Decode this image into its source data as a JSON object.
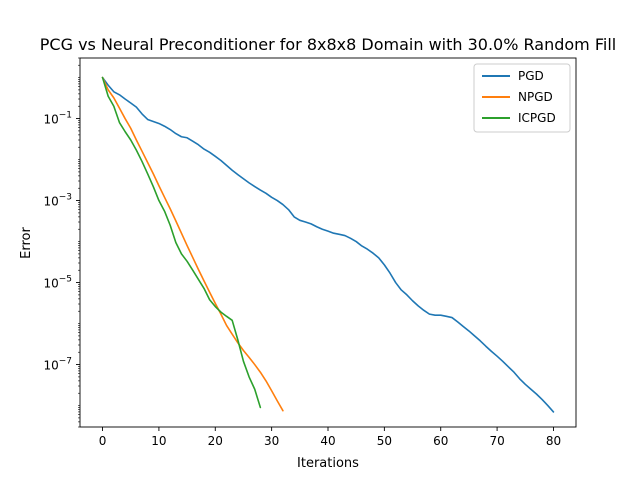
{
  "chart_data": {
    "type": "line",
    "title": "PCG vs Neural Preconditioner for 8x8x8 Domain with 30.0% Random Fill",
    "xlabel": "Iterations",
    "ylabel": "Error",
    "yscale": "log",
    "xlim": [
      -4,
      84
    ],
    "ylim": [
      3e-09,
      3.0
    ],
    "xticks": [
      0,
      10,
      20,
      30,
      40,
      50,
      60,
      70,
      80
    ],
    "xtick_labels": [
      "0",
      "10",
      "20",
      "30",
      "40",
      "50",
      "60",
      "70",
      "80"
    ],
    "yticks": [
      1e-07,
      1e-05,
      0.001,
      0.1
    ],
    "ytick_labels": [
      {
        "base": "10",
        "exp": "−7"
      },
      {
        "base": "10",
        "exp": "−5"
      },
      {
        "base": "10",
        "exp": "−3"
      },
      {
        "base": "10",
        "exp": "−1"
      }
    ],
    "legend_position": "top-right",
    "grid": false,
    "series": [
      {
        "name": "PGD",
        "color": "#1f77b4",
        "x": [
          0,
          1,
          2,
          3,
          4,
          5,
          6,
          7,
          8,
          9,
          10,
          11,
          12,
          13,
          14,
          15,
          16,
          17,
          18,
          19,
          20,
          21,
          22,
          23,
          24,
          25,
          26,
          27,
          28,
          29,
          30,
          31,
          32,
          33,
          34,
          35,
          36,
          37,
          38,
          39,
          40,
          41,
          42,
          43,
          44,
          45,
          46,
          47,
          48,
          49,
          50,
          51,
          52,
          53,
          54,
          55,
          56,
          57,
          58,
          59,
          60,
          61,
          62,
          63,
          64,
          65,
          66,
          67,
          68,
          69,
          70,
          71,
          72,
          73,
          74,
          75,
          76,
          77,
          78,
          79,
          80
        ],
        "y": [
          1.0,
          0.65,
          0.45,
          0.38,
          0.3,
          0.24,
          0.19,
          0.13,
          0.095,
          0.085,
          0.076,
          0.065,
          0.054,
          0.043,
          0.036,
          0.034,
          0.028,
          0.023,
          0.018,
          0.015,
          0.012,
          0.0095,
          0.0072,
          0.0055,
          0.0043,
          0.0034,
          0.0027,
          0.0022,
          0.0018,
          0.0015,
          0.0012,
          0.001,
          0.0008,
          0.0006,
          0.0004,
          0.00033,
          0.0003,
          0.00027,
          0.00023,
          0.0002,
          0.00018,
          0.00016,
          0.00015,
          0.00014,
          0.00012,
          0.0001,
          7.8e-05,
          6.5e-05,
          5.2e-05,
          4e-05,
          2.7e-05,
          1.7e-05,
          1e-05,
          6.6e-06,
          5e-06,
          3.6e-06,
          2.7e-06,
          2.1e-06,
          1.7e-06,
          1.6e-06,
          1.6e-06,
          1.5e-06,
          1.4e-06,
          1.1e-06,
          8.5e-07,
          6.6e-07,
          5e-07,
          3.8e-07,
          2.8e-07,
          2.1e-07,
          1.6e-07,
          1.2e-07,
          8.8e-08,
          6.5e-08,
          4.5e-08,
          3.3e-08,
          2.5e-08,
          1.9e-08,
          1.4e-08,
          1e-08,
          7e-09
        ]
      },
      {
        "name": "NPGD",
        "color": "#ff7f0e",
        "x": [
          0,
          1,
          2,
          3,
          4,
          5,
          6,
          7,
          8,
          9,
          10,
          11,
          12,
          13,
          14,
          15,
          16,
          17,
          18,
          19,
          20,
          21,
          22,
          23,
          24,
          25,
          26,
          27,
          28,
          29,
          30,
          31,
          32
        ],
        "y": [
          1.0,
          0.5,
          0.32,
          0.18,
          0.1,
          0.058,
          0.03,
          0.016,
          0.0085,
          0.0045,
          0.0023,
          0.0012,
          0.00063,
          0.00032,
          0.00016,
          8e-05,
          4.1e-05,
          2.1e-05,
          1.1e-05,
          5.8e-06,
          3.1e-06,
          1.7e-06,
          9e-07,
          5.5e-07,
          3.4e-07,
          2.2e-07,
          1.5e-07,
          1e-07,
          6.5e-08,
          4e-08,
          2.3e-08,
          1.3e-08,
          7.5e-09
        ]
      },
      {
        "name": "ICPGD",
        "color": "#2ca02c",
        "x": [
          0,
          1,
          2,
          3,
          4,
          5,
          6,
          7,
          8,
          9,
          10,
          11,
          12,
          13,
          14,
          15,
          16,
          17,
          18,
          19,
          20,
          21,
          22,
          23,
          24,
          25,
          26,
          27,
          28
        ],
        "y": [
          1.0,
          0.35,
          0.2,
          0.08,
          0.048,
          0.03,
          0.017,
          0.009,
          0.0045,
          0.0022,
          0.001,
          0.00055,
          0.00025,
          9.5e-05,
          5e-05,
          3.3e-05,
          2e-05,
          1.2e-05,
          7.2e-06,
          3.8e-06,
          2.6e-06,
          1.9e-06,
          1.5e-06,
          1.2e-06,
          4e-07,
          1.2e-07,
          5e-08,
          2.5e-08,
          9e-09
        ]
      }
    ]
  }
}
